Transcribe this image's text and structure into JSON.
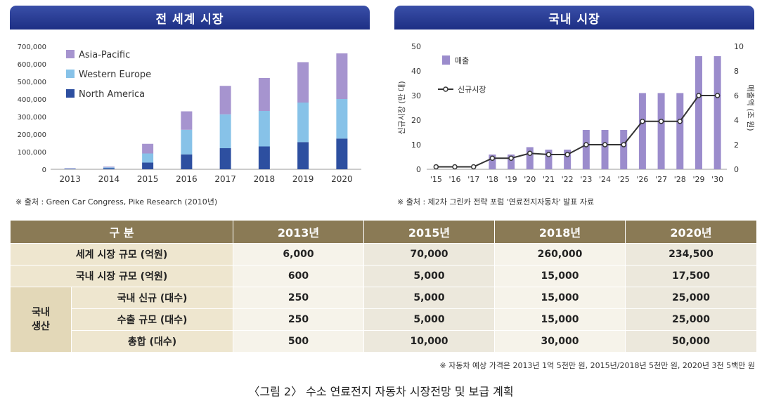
{
  "world_title": "전 세계 시장",
  "domestic_title": "국내 시장",
  "world_source": "※ 출처 : Green Car Congress, Pike Research (2010년)",
  "domestic_source": "※ 출처 : 제2차 그린카 전략 포럼 '연료전지자동차' 발표 자료",
  "chart_data": [
    {
      "type": "bar",
      "stacked": true,
      "title": "전 세계 시장",
      "categories": [
        "2013",
        "2014",
        "2015",
        "2016",
        "2017",
        "2018",
        "2019",
        "2020"
      ],
      "series": [
        {
          "name": "North America",
          "color": "#2d4fa0",
          "values": [
            2000,
            6000,
            38000,
            85000,
            120000,
            130000,
            155000,
            175000
          ]
        },
        {
          "name": "Western Europe",
          "color": "#87c2e8",
          "values": [
            2000,
            5000,
            52000,
            140000,
            193000,
            202000,
            225000,
            225000
          ]
        },
        {
          "name": "Asia-Pacific",
          "color": "#a694cf",
          "values": [
            2000,
            4000,
            55000,
            105000,
            162000,
            188000,
            230000,
            260000
          ]
        }
      ],
      "y_ticks": [
        "0",
        "100,000",
        "200,000",
        "300,000",
        "400,000",
        "500,000",
        "600,000",
        "700,000"
      ],
      "ylim": [
        0,
        700000
      ],
      "legend": "top-left",
      "grid": false
    },
    {
      "type": "bar+line",
      "title": "국내 시장",
      "categories": [
        "'15",
        "'16",
        "'17",
        "'18",
        "'19",
        "'20",
        "'21",
        "'22",
        "'23",
        "'24",
        "'25",
        "'26",
        "'27",
        "'28",
        "'29",
        "'30"
      ],
      "series": [
        {
          "name": "매출",
          "type": "bar",
          "axis": "left",
          "color": "#9b8ccc",
          "values": [
            0,
            0,
            0,
            6,
            6,
            9,
            8,
            8,
            16,
            16,
            16,
            31,
            31,
            31,
            46,
            46
          ]
        },
        {
          "name": "신규시장",
          "type": "line",
          "axis": "right",
          "color": "#333333",
          "values": [
            0.2,
            0.2,
            0.2,
            0.9,
            0.9,
            1.3,
            1.2,
            1.2,
            2.0,
            2.0,
            2.0,
            3.9,
            3.9,
            3.9,
            6.0,
            6.0
          ]
        }
      ],
      "ylabel_left": "신규시장 (만 대)",
      "ylabel_right": "매출액 (조 원)",
      "y_left_ticks": [
        "0",
        "10",
        "20",
        "30",
        "40",
        "50"
      ],
      "y_right_ticks": [
        "0",
        "2",
        "4",
        "6",
        "8",
        "10"
      ],
      "ylim_left": [
        0,
        50
      ],
      "ylim_right": [
        0,
        10
      ],
      "legend": "top-left",
      "grid": false
    }
  ],
  "table": {
    "header": {
      "label": "구 분",
      "years": [
        "2013년",
        "2015년",
        "2018년",
        "2020년"
      ]
    },
    "rows": [
      {
        "label": "세계 시장 규모 (억원)",
        "values": [
          "6,000",
          "70,000",
          "260,000",
          "234,500"
        ]
      },
      {
        "label": "국내 시장 규모 (억원)",
        "values": [
          "600",
          "5,000",
          "15,000",
          "17,500"
        ]
      }
    ],
    "group_label_1": "국내",
    "group_label_2": "생산",
    "group_rows": [
      {
        "label": "국내 신규 (대수)",
        "values": [
          "250",
          "5,000",
          "15,000",
          "25,000"
        ]
      },
      {
        "label": "수출 규모 (대수)",
        "values": [
          "250",
          "5,000",
          "15,000",
          "25,000"
        ]
      },
      {
        "label": "총합 (대수)",
        "values": [
          "500",
          "10,000",
          "30,000",
          "50,000"
        ]
      }
    ]
  },
  "note": "※ 자동차 예상 가격은 2013년 1억 5천만 원, 2015년/2018년 5천만 원, 2020년 3천 5백만 원",
  "caption": "〈그림 2〉 수소 연료전지 자동차 시장전망 및 보급 계획"
}
